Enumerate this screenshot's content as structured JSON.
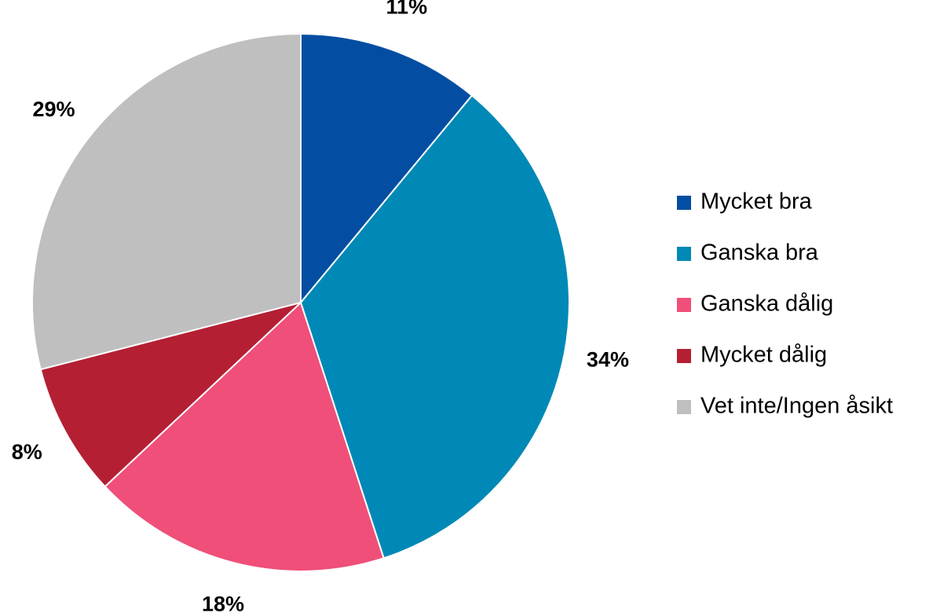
{
  "chart_data": {
    "type": "pie",
    "categories": [
      "Mycket bra",
      "Ganska bra",
      "Ganska dålig",
      "Mycket dålig",
      "Vet inte/Ingen åsikt"
    ],
    "values": [
      11,
      34,
      18,
      8,
      29
    ],
    "value_labels": [
      "11%",
      "34%",
      "18%",
      "8%",
      "29%"
    ],
    "colors": [
      "#034ea2",
      "#0089b6",
      "#ef4f79",
      "#b41f33",
      "#bfbfbf"
    ],
    "legend": "right"
  }
}
